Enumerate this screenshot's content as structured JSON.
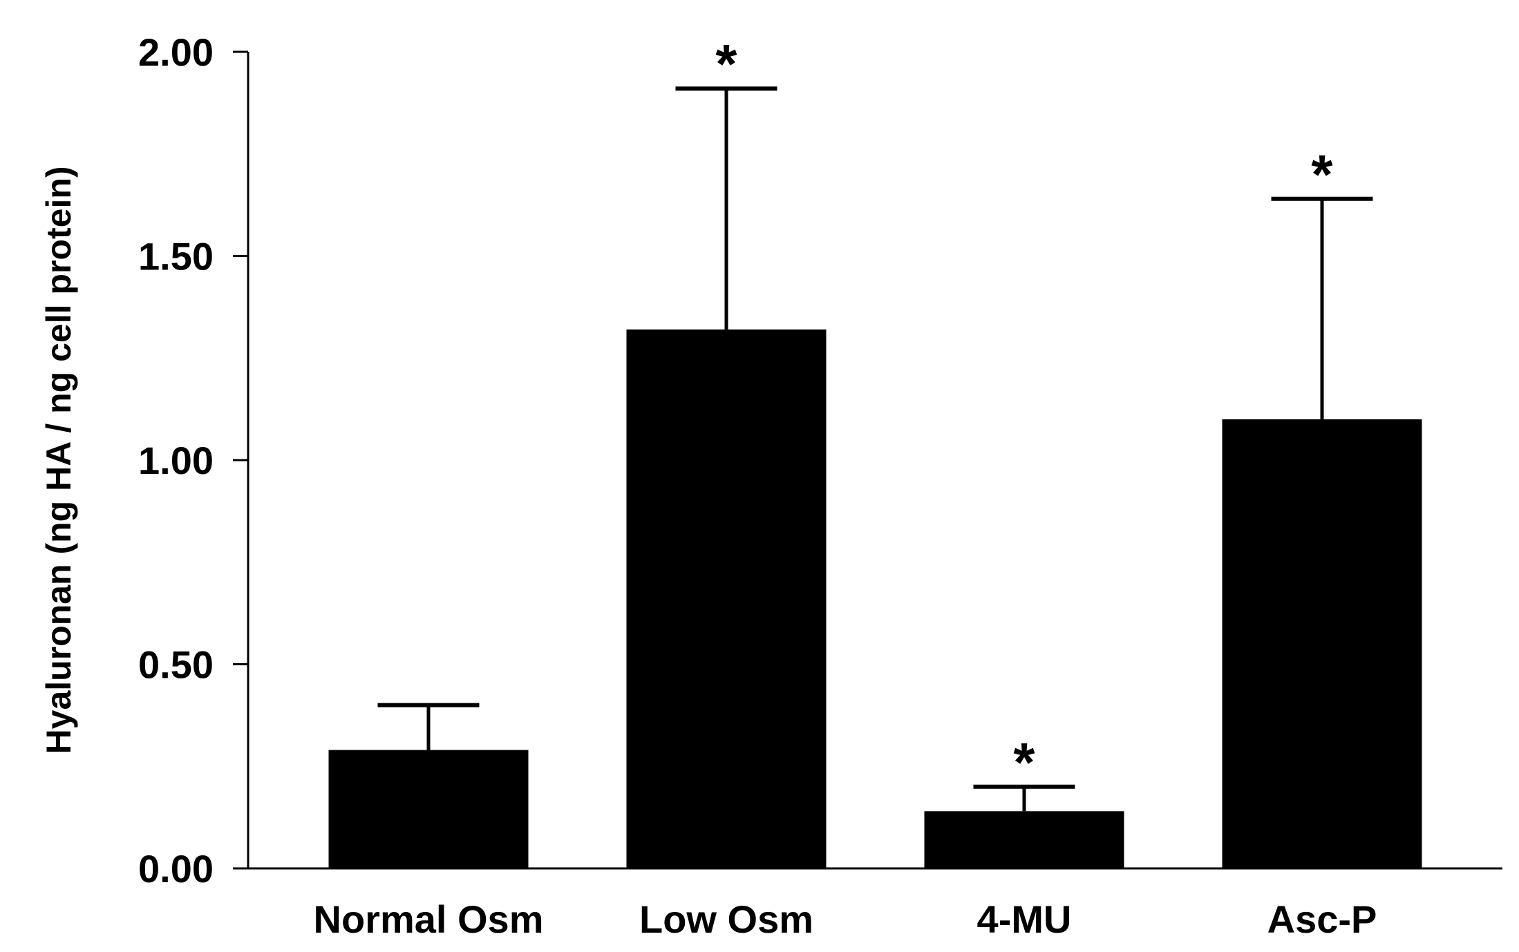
{
  "chart_data": {
    "type": "bar",
    "title": "",
    "xlabel": "",
    "ylabel": "Hyaluronan (ng HA / ng cell protein)",
    "ylim": [
      0,
      2.0
    ],
    "yticks": [
      "0.00",
      "0.50",
      "1.00",
      "1.50",
      "2.00"
    ],
    "grid": false,
    "categories": [
      "Normal Osm",
      "Low Osm",
      "4-MU",
      "Asc-P"
    ],
    "values": [
      0.29,
      1.32,
      0.14,
      1.1
    ],
    "error_upper": [
      0.4,
      1.91,
      0.2,
      1.64
    ],
    "significance": [
      "",
      "*",
      "*",
      "*"
    ],
    "bar_color": "#000000"
  }
}
